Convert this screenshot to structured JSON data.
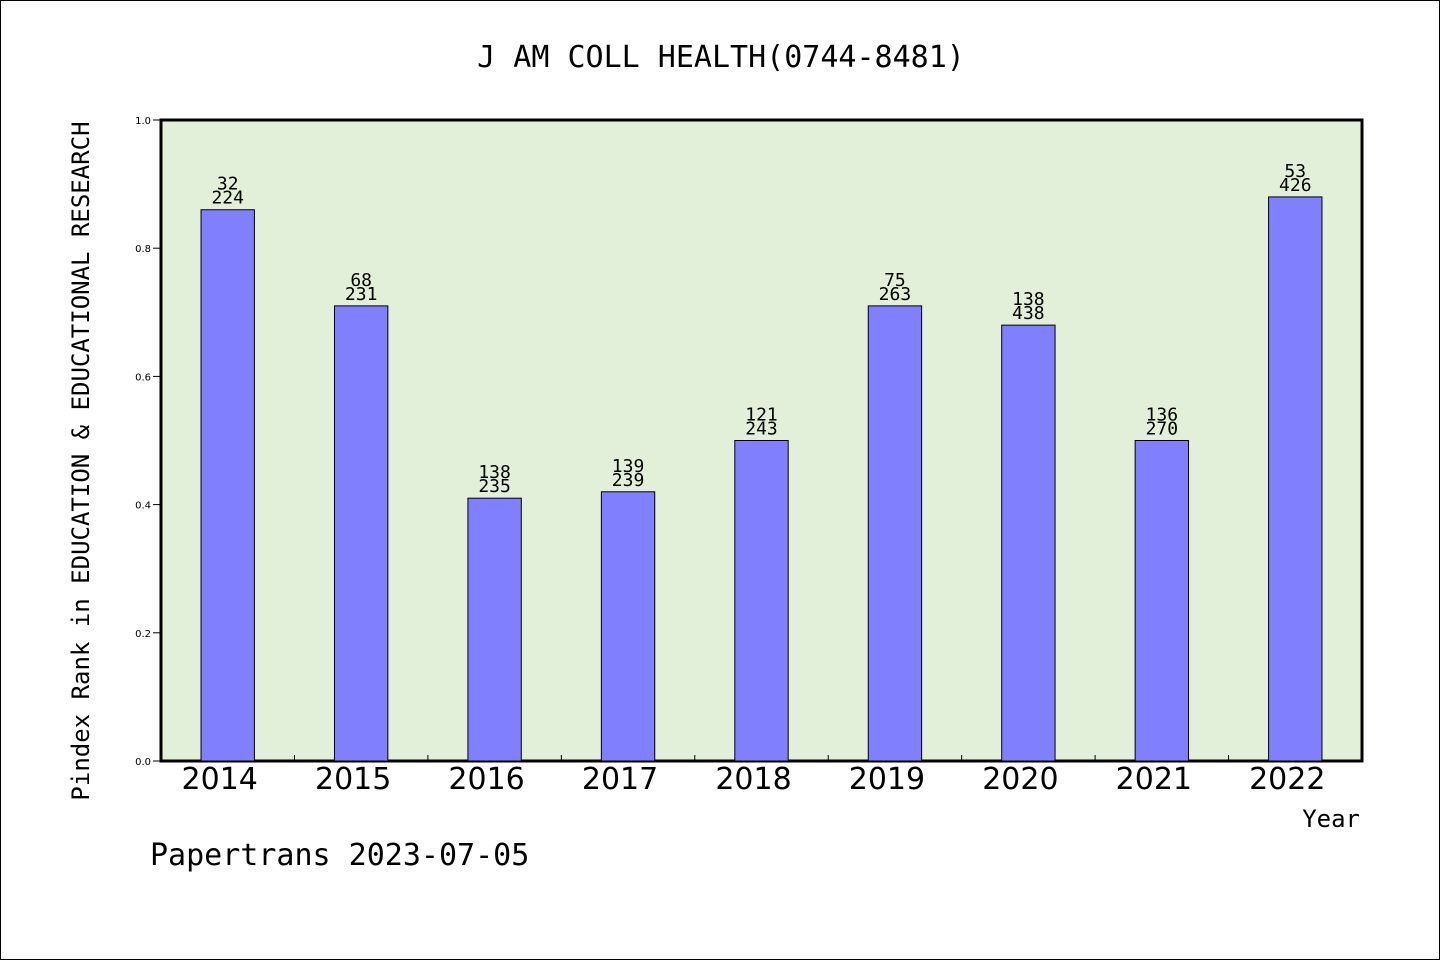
{
  "chart_data": {
    "type": "bar",
    "title": "J AM COLL HEALTH(0744-8481)",
    "xlabel": "Year",
    "ylabel": "Pindex Rank in EDUCATION & EDUCATIONAL RESEARCH",
    "categories": [
      "2014",
      "2015",
      "2016",
      "2017",
      "2018",
      "2019",
      "2020",
      "2021",
      "2022"
    ],
    "values": [
      0.86,
      0.71,
      0.41,
      0.42,
      0.5,
      0.71,
      0.68,
      0.5,
      0.88
    ],
    "rank_labels": [
      "32",
      "68",
      "138",
      "139",
      "121",
      "75",
      "138",
      "136",
      "53"
    ],
    "total_labels": [
      "224",
      "231",
      "235",
      "239",
      "243",
      "263",
      "438",
      "270",
      "426"
    ],
    "ylim": [
      0,
      1.0
    ],
    "yticks": [
      "0.0",
      "0.2",
      "0.4",
      "0.6",
      "0.8",
      "1.0"
    ],
    "grid": false,
    "legend": "none",
    "colors": {
      "plot_bg": "#e2f0d9",
      "bar": "#8080ff",
      "bar_edge": "#000000"
    }
  },
  "footer": {
    "text": "Papertrans 2023-07-05"
  }
}
